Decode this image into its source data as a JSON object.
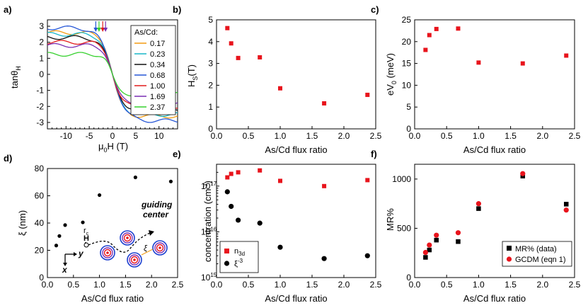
{
  "figure": {
    "colors": {
      "red": "#e8141c",
      "black": "#000000"
    }
  },
  "chart_data": [
    {
      "panel": "a)",
      "type": "line",
      "xlabel": "μ₀H (T)",
      "ylabel": "tanθH",
      "xlim": [
        -14,
        14
      ],
      "ylim": [
        -3.4,
        3.4
      ],
      "xticks": [
        "-10",
        "-5",
        "0",
        "5",
        "10"
      ],
      "yticks": [
        "3",
        "2",
        "1",
        "0",
        "-1",
        "-2",
        "-3"
      ],
      "legend_title": "As/Cd:",
      "series": [
        {
          "name": "0.17",
          "color": "#f39c12",
          "sat": 2.6,
          "width": 2.2
        },
        {
          "name": "0.23",
          "color": "#18b7c9",
          "sat": 2.5,
          "width": 2.3
        },
        {
          "name": "0.34",
          "color": "#111111",
          "sat": 2.3,
          "width": 2.4
        },
        {
          "name": "0.68",
          "color": "#2656d6",
          "sat": 2.9,
          "width": 2.8
        },
        {
          "name": "1.00",
          "color": "#e21d1d",
          "sat": 2.0,
          "width": 2.0
        },
        {
          "name": "1.69",
          "color": "#7a2fb3",
          "sat": 1.8,
          "width": 2.0
        },
        {
          "name": "2.37",
          "color": "#37d12f",
          "sat": 1.25,
          "width": 1.6
        }
      ]
    },
    {
      "panel": "b)",
      "type": "scatter",
      "xlabel": "As/Cd flux ratio",
      "ylabel": "HS(T)",
      "xlim": [
        0,
        2.5
      ],
      "ylim": [
        0,
        5
      ],
      "xticks": [
        "0.0",
        "0.5",
        "1.0",
        "1.5",
        "2.0",
        "2.5"
      ],
      "yticks": [
        "0",
        "1",
        "2",
        "3",
        "4",
        "5"
      ],
      "series": [
        {
          "name": "HS",
          "x": [
            0.17,
            0.23,
            0.34,
            0.68,
            1.0,
            1.69,
            2.37
          ],
          "y": [
            4.62,
            3.92,
            3.25,
            3.28,
            1.86,
            1.17,
            1.56
          ]
        }
      ]
    },
    {
      "panel": "c)",
      "type": "scatter",
      "xlabel": "As/Cd flux ratio",
      "ylabel": "eV0 (meV)",
      "xlim": [
        0,
        2.5
      ],
      "ylim": [
        0,
        25
      ],
      "xticks": [
        "0.0",
        "0.5",
        "1.0",
        "1.5",
        "2.0",
        "2.5"
      ],
      "yticks": [
        "0",
        "5",
        "10",
        "15",
        "20",
        "25"
      ],
      "series": [
        {
          "name": "eV0",
          "x": [
            0.17,
            0.23,
            0.34,
            0.68,
            1.0,
            1.69,
            2.37
          ],
          "y": [
            18.1,
            21.5,
            22.9,
            23.0,
            15.2,
            15.0,
            16.8
          ]
        }
      ]
    },
    {
      "panel": "d)",
      "type": "scatter",
      "xlabel": "As/Cd flux ratio",
      "ylabel": "ξ (nm)",
      "xlim": [
        0,
        2.5
      ],
      "ylim": [
        0,
        80
      ],
      "xticks": [
        "0.0",
        "0.5",
        "1.0",
        "1.5",
        "2.0",
        "2.5"
      ],
      "yticks": [
        "0",
        "20",
        "40",
        "60",
        "80"
      ],
      "annotations": [
        "guiding",
        "center",
        "rc",
        "H",
        "y",
        "x",
        "ξ"
      ],
      "series": [
        {
          "name": "ξ",
          "x": [
            0.17,
            0.23,
            0.34,
            0.68,
            1.0,
            1.69,
            2.37
          ],
          "y": [
            23.5,
            30.5,
            38.5,
            40.5,
            60.5,
            73.5,
            70.5
          ]
        }
      ]
    },
    {
      "panel": "e)",
      "type": "scatter",
      "xlabel": "As/Cd flux ratio",
      "ylabel": "concentration (cm⁻³)",
      "yscale": "log",
      "xlim": [
        0,
        2.5
      ],
      "ylim": [
        1000000000000000.0,
        3e+17
      ],
      "xticks": [
        "0.0",
        "0.5",
        "1.0",
        "1.5",
        "2.0",
        "2.5"
      ],
      "yticks": [
        "10¹⁵",
        "10¹⁶",
        "10¹⁷"
      ],
      "legend": [
        "n3d",
        "ξ⁻³"
      ],
      "series": [
        {
          "name": "n3d",
          "x": [
            0.17,
            0.23,
            0.34,
            0.68,
            1.0,
            1.69,
            2.37
          ],
          "y": [
            1.55e+17,
            1.85e+17,
            2e+17,
            2.2e+17,
            1.3e+17,
            1e+17,
            1.35e+17
          ]
        },
        {
          "name": "ξ⁻³",
          "x": [
            0.17,
            0.23,
            0.34,
            0.68,
            1.0,
            1.69,
            2.37
          ],
          "y": [
            7.5e+16,
            3.6e+16,
            1.8e+16,
            1.55e+16,
            4600000000000000.0,
            2600000000000000.0,
            3000000000000000.0
          ]
        }
      ]
    },
    {
      "panel": "f)",
      "type": "scatter",
      "xlabel": "As/Cd flux ratio",
      "ylabel": "MR%",
      "xlim": [
        0,
        2.5
      ],
      "ylim": [
        0,
        1150
      ],
      "xticks": [
        "0.0",
        "0.5",
        "1.0",
        "1.5",
        "2.0",
        "2.5"
      ],
      "yticks": [
        "0",
        "500",
        "1000"
      ],
      "legend": [
        "MR% (data)",
        "GCDM (eqn 1)"
      ],
      "series": [
        {
          "name": "MR% (data)",
          "x": [
            0.17,
            0.23,
            0.34,
            0.68,
            1.0,
            1.69,
            2.37
          ],
          "y": [
            205,
            280,
            380,
            365,
            700,
            1030,
            745
          ]
        },
        {
          "name": "GCDM (eqn 1)",
          "x": [
            0.17,
            0.23,
            0.34,
            0.68,
            1.0,
            1.69,
            2.37
          ],
          "y": [
            255,
            330,
            430,
            455,
            750,
            1055,
            685
          ]
        }
      ]
    }
  ]
}
